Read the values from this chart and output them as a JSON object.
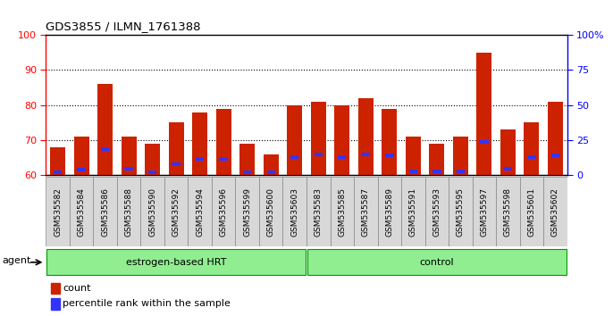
{
  "title": "GDS3855 / ILMN_1761388",
  "samples": [
    "GSM535582",
    "GSM535584",
    "GSM535586",
    "GSM535588",
    "GSM535590",
    "GSM535592",
    "GSM535594",
    "GSM535596",
    "GSM535599",
    "GSM535600",
    "GSM535603",
    "GSM535583",
    "GSM535585",
    "GSM535587",
    "GSM535589",
    "GSM535591",
    "GSM535593",
    "GSM535595",
    "GSM535597",
    "GSM535598",
    "GSM535601",
    "GSM535602"
  ],
  "red_values": [
    68,
    71,
    86,
    71,
    69,
    75,
    78,
    79,
    69,
    66,
    80,
    81,
    80,
    82,
    79,
    71,
    69,
    71,
    95,
    73,
    75,
    81
  ],
  "blue_pct": [
    2,
    4,
    19,
    5,
    2,
    8,
    12,
    12,
    2,
    2,
    13,
    15,
    13,
    15,
    14,
    3,
    3,
    3,
    24,
    5,
    13,
    14
  ],
  "n_hrt": 11,
  "n_ctrl": 11,
  "group_labels": [
    "estrogen-based HRT",
    "control"
  ],
  "ylim_left": [
    60,
    100
  ],
  "ylim_right": [
    0,
    100
  ],
  "yticks_left": [
    60,
    70,
    80,
    90,
    100
  ],
  "yticks_right": [
    0,
    25,
    50,
    75,
    100
  ],
  "ytick_labels_right": [
    "0",
    "25",
    "50",
    "75",
    "100%"
  ],
  "bar_color_red": "#CC2200",
  "bar_color_blue": "#3333FF",
  "bar_width": 0.65,
  "agent_label": "agent",
  "legend_count": "count",
  "legend_pct": "percentile rank within the sample",
  "group_color": "#90EE90",
  "group_edge_color": "#009900",
  "label_box_color": "#d8d8d8",
  "label_box_edge": "#888888"
}
